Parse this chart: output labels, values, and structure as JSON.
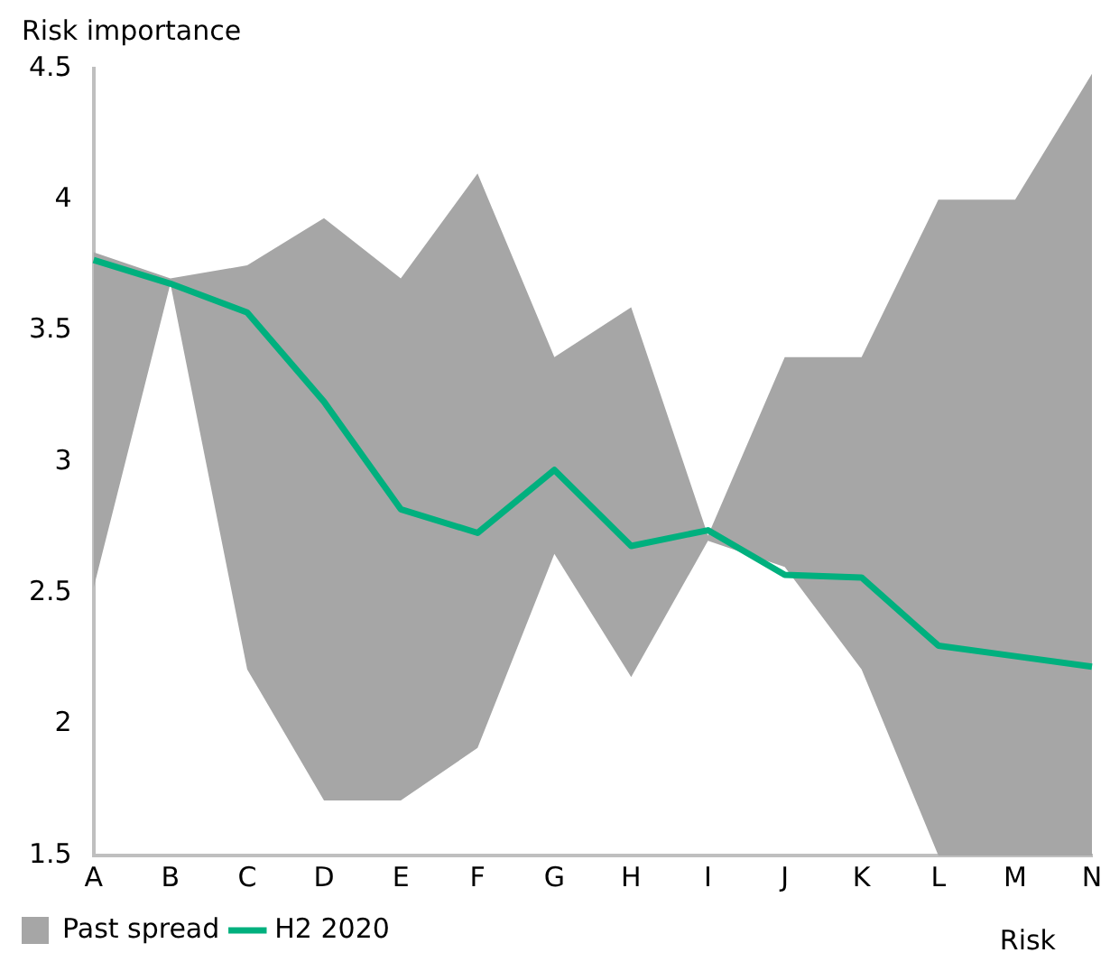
{
  "chart_data": {
    "type": "line",
    "ylabel": "Risk importance",
    "xlabel": "Risk",
    "categories": [
      "A",
      "B",
      "C",
      "D",
      "E",
      "F",
      "G",
      "H",
      "I",
      "J",
      "K",
      "L",
      "M",
      "N"
    ],
    "series": [
      {
        "name": "Past spread",
        "type": "area",
        "color": "#a6a6a6",
        "values": [
          null,
          null,
          null,
          null,
          null,
          null,
          null,
          null,
          null,
          null,
          null,
          null,
          null,
          null
        ],
        "lower": [
          2.52,
          3.68,
          2.21,
          1.71,
          1.71,
          1.91,
          2.65,
          2.18,
          2.7,
          2.6,
          2.21,
          1.5,
          1.5,
          1.5
        ],
        "upper": [
          3.8,
          3.7,
          3.75,
          3.93,
          3.7,
          4.1,
          3.4,
          3.59,
          2.72,
          3.4,
          3.4,
          4.0,
          4.0,
          4.48
        ]
      },
      {
        "name": "H2 2020",
        "type": "line",
        "color": "#00b07e",
        "values": [
          3.77,
          3.68,
          3.57,
          3.23,
          2.82,
          2.73,
          2.97,
          2.68,
          2.74,
          2.57,
          2.56,
          2.3,
          2.26,
          2.22
        ]
      }
    ],
    "ylim": [
      1.5,
      4.5
    ],
    "yticks": [
      1.5,
      2,
      2.5,
      3,
      3.5,
      4,
      4.5
    ],
    "grid": false,
    "legend": "bottom left",
    "marker": "none",
    "line_style": "solid"
  }
}
